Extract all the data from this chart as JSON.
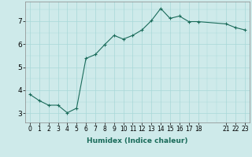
{
  "xlabel": "Humidex (Indice chaleur)",
  "ylabel": "",
  "background_color": "#ceeaea",
  "line_color": "#1a6b5a",
  "marker_color": "#1a6b5a",
  "x": [
    0,
    1,
    2,
    3,
    4,
    5,
    6,
    7,
    8,
    9,
    10,
    11,
    12,
    13,
    14,
    15,
    16,
    17,
    18,
    21,
    22,
    23
  ],
  "y": [
    3.82,
    3.55,
    3.35,
    3.35,
    3.02,
    3.22,
    5.38,
    5.55,
    5.98,
    6.38,
    6.22,
    6.38,
    6.62,
    7.02,
    7.55,
    7.12,
    7.22,
    6.98,
    6.98,
    6.88,
    6.72,
    6.62
  ],
  "xlim": [
    -0.5,
    23.5
  ],
  "ylim": [
    2.6,
    7.85
  ],
  "yticks": [
    3,
    4,
    5,
    6,
    7
  ],
  "xticks": [
    0,
    1,
    2,
    3,
    4,
    5,
    6,
    7,
    8,
    9,
    10,
    11,
    12,
    13,
    14,
    15,
    16,
    17,
    18,
    21,
    22,
    23
  ],
  "xtick_labels": [
    "0",
    "1",
    "2",
    "3",
    "4",
    "5",
    "6",
    "7",
    "8",
    "9",
    "10",
    "11",
    "12",
    "13",
    "14",
    "15",
    "16",
    "17",
    "18",
    "21",
    "22",
    "23"
  ],
  "grid_color": "#a8d8d8",
  "linewidth": 0.8,
  "markersize": 3.0
}
